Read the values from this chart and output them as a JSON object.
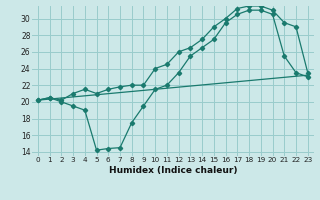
{
  "xlabel": "Humidex (Indice chaleur)",
  "bg_color": "#cce8e8",
  "grid_color": "#99cccc",
  "line_color": "#1a7a6e",
  "line1_x": [
    0,
    1,
    2,
    3,
    4,
    5,
    6,
    7,
    8,
    9,
    10,
    11,
    12,
    13,
    14,
    15,
    16,
    17,
    18,
    19,
    20,
    21,
    22,
    23
  ],
  "line1_y": [
    20.2,
    20.5,
    20.0,
    19.5,
    19.0,
    14.2,
    14.4,
    14.5,
    17.5,
    19.5,
    21.5,
    22.0,
    23.5,
    25.5,
    26.5,
    27.5,
    29.5,
    30.5,
    31.0,
    31.0,
    30.5,
    25.5,
    23.5,
    23.0
  ],
  "line2_x": [
    0,
    1,
    2,
    3,
    4,
    5,
    6,
    7,
    8,
    9,
    10,
    11,
    12,
    13,
    14,
    15,
    16,
    17,
    18,
    19,
    20,
    21,
    22,
    23
  ],
  "line2_y": [
    20.2,
    20.5,
    20.2,
    21.0,
    21.5,
    21.0,
    21.5,
    21.8,
    22.0,
    22.0,
    24.0,
    24.5,
    26.0,
    26.5,
    27.5,
    29.0,
    30.0,
    31.2,
    31.5,
    31.5,
    31.0,
    29.5,
    29.0,
    23.5
  ],
  "line3_x": [
    0,
    23
  ],
  "line3_y": [
    20.2,
    23.2
  ],
  "ylim": [
    13.5,
    31.5
  ],
  "xlim": [
    -0.5,
    23.5
  ],
  "yticks": [
    14,
    16,
    18,
    20,
    22,
    24,
    26,
    28,
    30
  ],
  "xticks": [
    0,
    1,
    2,
    3,
    4,
    5,
    6,
    7,
    8,
    9,
    10,
    11,
    12,
    13,
    14,
    15,
    16,
    17,
    18,
    19,
    20,
    21,
    22,
    23
  ],
  "xlabel_fontsize": 6.5,
  "tick_fontsize": 5.2
}
